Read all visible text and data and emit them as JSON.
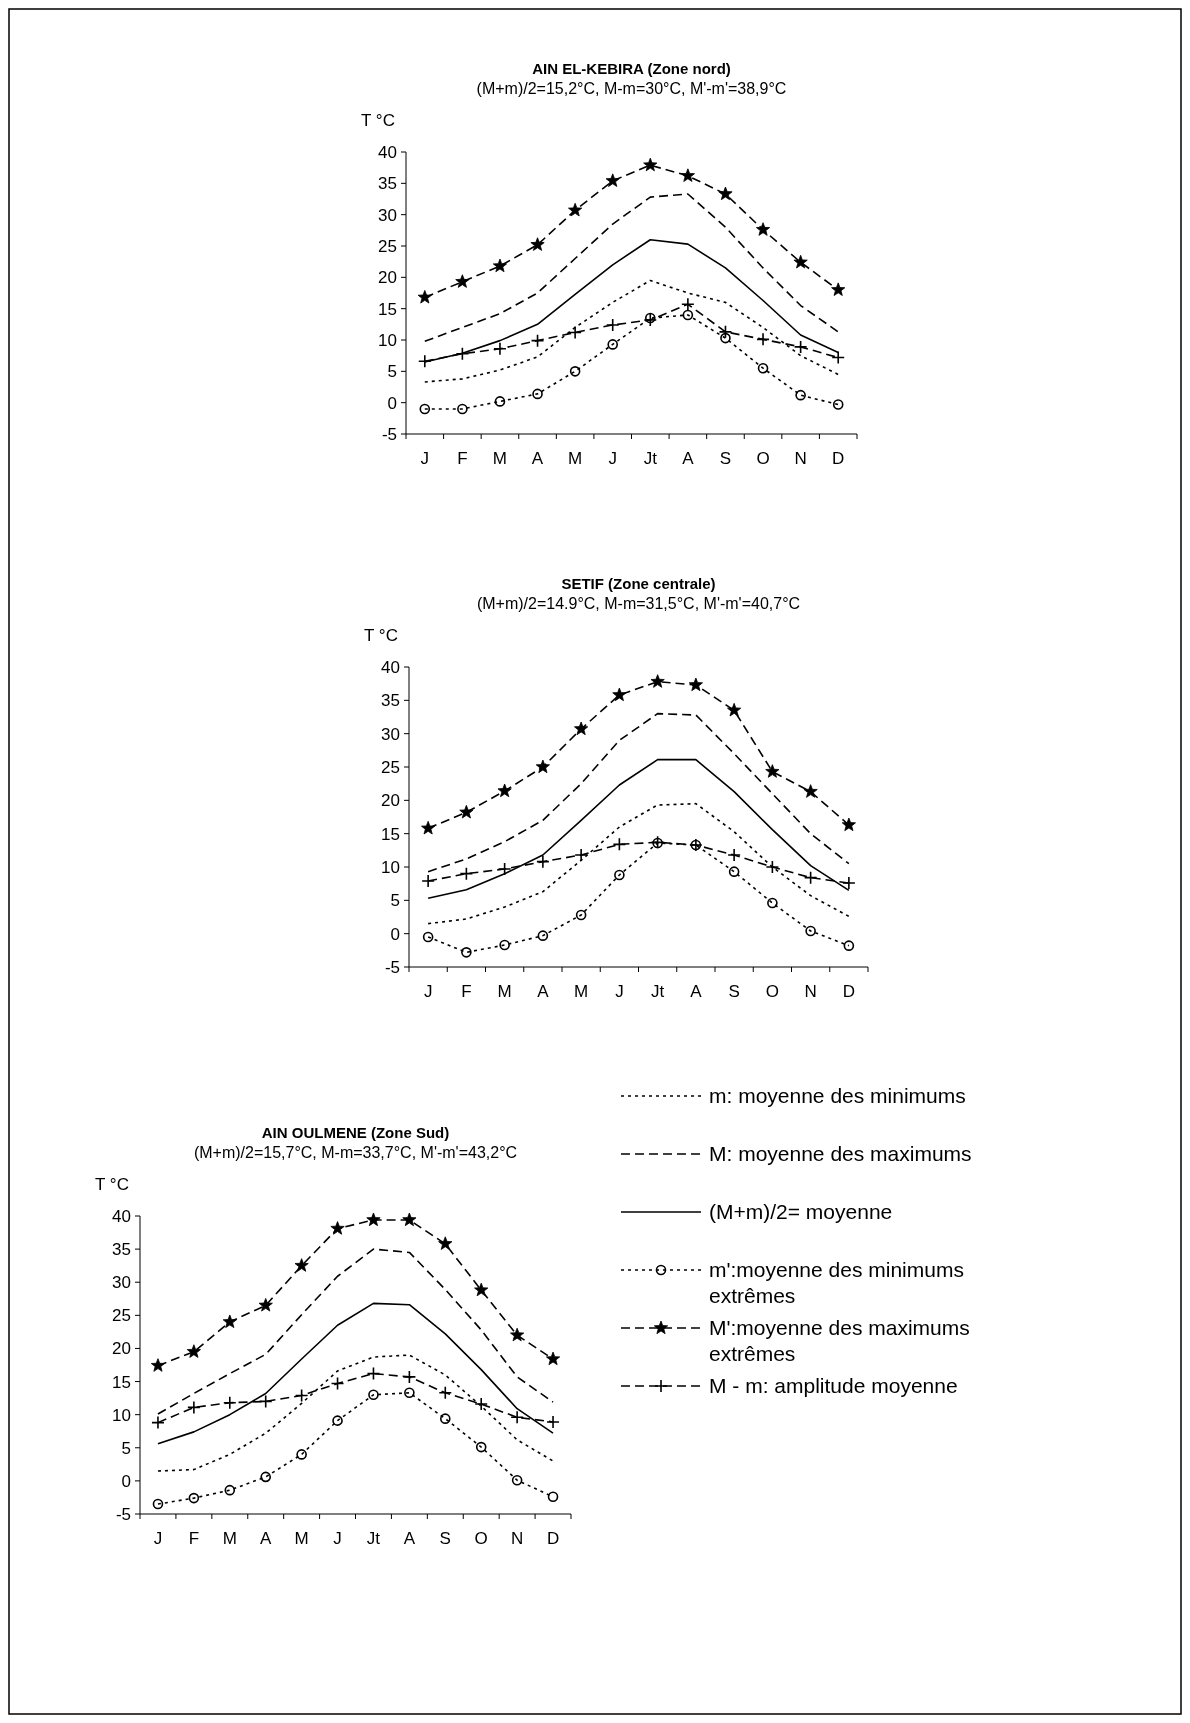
{
  "chart_data": [
    {
      "type": "line",
      "title": "AIN EL-KEBIRA (Zone nord)",
      "subtitle": "(M+m)/2=15,2°C, M-m=30°C, M'-m'=38,9°C",
      "ylabel": "T °C",
      "categories": [
        "J",
        "F",
        "M",
        "A",
        "M",
        "J",
        "Jt",
        "A",
        "S",
        "O",
        "N",
        "D"
      ],
      "ylim": [
        -5,
        40
      ],
      "yticks": [
        -5,
        0,
        5,
        10,
        15,
        20,
        25,
        30,
        35,
        40
      ],
      "series": [
        {
          "color": "#000000",
          "line_style": "dotted",
          "marker": "none",
          "values": [
            3.3,
            3.8,
            5.2,
            7.3,
            12,
            16,
            19.5,
            17.5,
            16,
            12,
            7.5,
            4.5
          ]
        },
        {
          "color": "#000000",
          "line_style": "dashed",
          "marker": "none",
          "values": [
            9.8,
            12,
            14.2,
            17.5,
            23,
            28.5,
            32.8,
            33.3,
            28,
            21.5,
            15.5,
            11.3
          ]
        },
        {
          "color": "#000000",
          "line_style": "solid",
          "marker": "none",
          "values": [
            6.5,
            7.9,
            9.9,
            12.5,
            17.3,
            22,
            26,
            25.3,
            21.5,
            16.3,
            10.8,
            8
          ]
        },
        {
          "color": "#000000",
          "line_style": "dotted",
          "marker": "circle",
          "values": [
            -1,
            -1,
            0.2,
            1.4,
            5,
            9.3,
            13.5,
            14,
            10.3,
            5.5,
            1.2,
            -0.3
          ]
        },
        {
          "color": "#000000",
          "line_style": "dashed",
          "marker": "star",
          "values": [
            16.8,
            19.3,
            21.8,
            25.2,
            30.7,
            35.4,
            37.9,
            36.2,
            33.3,
            27.6,
            22.4,
            18
          ]
        },
        {
          "color": "#000000",
          "line_style": "dashed",
          "marker": "cross",
          "values": [
            6.6,
            7.8,
            8.6,
            9.9,
            11.2,
            12.4,
            13.2,
            15.7,
            11.3,
            10.1,
            8.9,
            7.2
          ]
        }
      ]
    },
    {
      "type": "line",
      "title": "SETIF (Zone centrale)",
      "subtitle": "(M+m)/2=14.9°C, M-m=31,5°C, M'-m'=40,7°C",
      "ylabel": "T °C",
      "categories": [
        "J",
        "F",
        "M",
        "A",
        "M",
        "J",
        "Jt",
        "A",
        "S",
        "O",
        "N",
        "D"
      ],
      "ylim": [
        -5,
        40
      ],
      "yticks": [
        -5,
        0,
        5,
        10,
        15,
        20,
        25,
        30,
        35,
        40
      ],
      "series": [
        {
          "color": "#000000",
          "line_style": "dotted",
          "marker": "none",
          "values": [
            1.5,
            2.2,
            4,
            6.3,
            11,
            16,
            19.3,
            19.5,
            15.3,
            10,
            5.7,
            2.6
          ]
        },
        {
          "color": "#000000",
          "line_style": "dashed",
          "marker": "none",
          "values": [
            9.3,
            11.2,
            13.8,
            17,
            22.5,
            29,
            33,
            32.8,
            27,
            21,
            15,
            10.5
          ]
        },
        {
          "color": "#000000",
          "line_style": "solid",
          "marker": "none",
          "values": [
            5.3,
            6.6,
            9,
            11.8,
            17,
            22.3,
            26.1,
            26.1,
            21.3,
            15.6,
            10.2,
            6.5
          ]
        },
        {
          "color": "#000000",
          "line_style": "dotted",
          "marker": "circle",
          "values": [
            -0.5,
            -2.8,
            -1.7,
            -0.3,
            2.8,
            8.8,
            13.6,
            13.3,
            9.3,
            4.6,
            0.4,
            -1.8
          ]
        },
        {
          "color": "#000000",
          "line_style": "dashed",
          "marker": "star",
          "values": [
            15.8,
            18.2,
            21.4,
            25,
            30.7,
            35.8,
            37.8,
            37.3,
            33.5,
            24.3,
            21.3,
            16.3
          ]
        },
        {
          "color": "#000000",
          "line_style": "dashed",
          "marker": "cross",
          "values": [
            7.9,
            9,
            9.7,
            10.8,
            11.8,
            13.4,
            13.7,
            13.3,
            11.8,
            10,
            8.4,
            7.6
          ]
        }
      ]
    },
    {
      "type": "line",
      "title": "AIN OULMENE (Zone Sud)",
      "subtitle": "(M+m)/2=15,7°C, M-m=33,7°C, M'-m'=43,2°C",
      "ylabel": "T °C",
      "categories": [
        "J",
        "F",
        "M",
        "A",
        "M",
        "J",
        "Jt",
        "A",
        "S",
        "O",
        "N",
        "D"
      ],
      "ylim": [
        -5,
        40
      ],
      "yticks": [
        -5,
        0,
        5,
        10,
        15,
        20,
        25,
        30,
        35,
        40
      ],
      "legend": "right",
      "series": [
        {
          "name": "m: moyenne des minimums",
          "color": "#000000",
          "line_style": "dotted",
          "marker": "none",
          "values": [
            1.5,
            1.7,
            4,
            7.2,
            11.7,
            16.6,
            18.7,
            19,
            16,
            11.3,
            6.2,
            3
          ]
        },
        {
          "name": "M: moyenne des maximums",
          "color": "#000000",
          "line_style": "dashed",
          "marker": "none",
          "values": [
            10.1,
            13.2,
            16.2,
            19.1,
            25.1,
            30.9,
            35,
            34.5,
            28.9,
            22.8,
            15.7,
            11.9
          ]
        },
        {
          "name": "(M+m)/2= moyenne",
          "color": "#000000",
          "line_style": "solid",
          "marker": "none",
          "values": [
            5.6,
            7.4,
            10,
            13.2,
            18.4,
            23.5,
            26.8,
            26.6,
            22.2,
            16.8,
            10.9,
            7.2
          ]
        },
        {
          "name": "m':moyenne des minimums extrêmes",
          "color": "#000000",
          "line_style": "dotted",
          "marker": "circle",
          "values": [
            -3.5,
            -2.6,
            -1.4,
            0.6,
            4,
            9.1,
            13,
            13.3,
            9.4,
            5.1,
            0.1,
            -2.4
          ]
        },
        {
          "name": "M':moyenne des maximums extrêmes",
          "color": "#000000",
          "line_style": "dashed",
          "marker": "star",
          "values": [
            17.4,
            19.5,
            24,
            26.5,
            32.5,
            38.1,
            39.4,
            39.4,
            35.8,
            28.8,
            22,
            18.4
          ]
        },
        {
          "name": "M - m: amplitude moyenne",
          "color": "#000000",
          "line_style": "dashed",
          "marker": "cross",
          "values": [
            8.8,
            11.1,
            11.8,
            12,
            12.9,
            14.7,
            16.2,
            15.7,
            13.3,
            11.6,
            9.6,
            8.9
          ]
        }
      ]
    }
  ]
}
